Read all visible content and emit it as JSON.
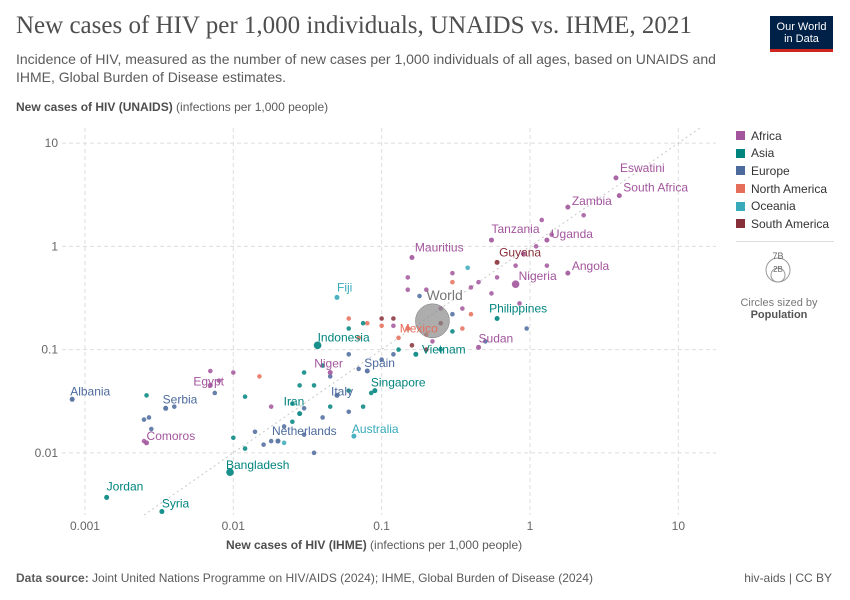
{
  "header": {
    "title": "New cases of HIV per 1,000 individuals, UNAIDS vs. IHME, 2021",
    "subtitle": "Incidence of HIV, measured as the number of new cases per 1,000 individuals of all ages, based on UNAIDS and IHME, Global Burden of Disease estimates.",
    "logo_line1": "Our World",
    "logo_line2": "in Data"
  },
  "axes": {
    "y_label_bold": "New cases of HIV (UNAIDS)",
    "y_label_unit": "(infections per 1,000 people)",
    "x_label_bold": "New cases of HIV (IHME)",
    "x_label_unit": "(infections per 1,000 people)"
  },
  "legend": {
    "items": [
      {
        "label": "Africa",
        "color": "#a2559c"
      },
      {
        "label": "Asia",
        "color": "#00847e"
      },
      {
        "label": "Europe",
        "color": "#4c6a9c"
      },
      {
        "label": "North America",
        "color": "#e56e5a"
      },
      {
        "label": "Oceania",
        "color": "#38aaba"
      },
      {
        "label": "South America",
        "color": "#883039"
      }
    ],
    "size_note": "Circles sized by",
    "size_variable": "Population",
    "size_big": "7B",
    "size_small": "2B"
  },
  "footer": {
    "source_label": "Data source:",
    "source_text": "Joint United Nations Programme on HIV/AIDS (2024); IHME, Global Burden of Disease (2024)",
    "license": "hiv-aids | CC BY"
  },
  "chart_data": {
    "type": "scatter",
    "x_scale": "log",
    "y_scale": "log",
    "xlim": [
      0.0007,
      14
    ],
    "ylim": [
      0.0025,
      14
    ],
    "x_ticks": [
      "0.001",
      "0.01",
      "0.1",
      "1",
      "10"
    ],
    "y_ticks": [
      "10",
      "1",
      "0.1",
      "0.01"
    ],
    "grid": true,
    "legend_position": "right",
    "reference_line": "y = x",
    "labeled_points": [
      {
        "name": "Eswatini",
        "x": 3.8,
        "y": 4.6,
        "region": "Africa",
        "size": "small"
      },
      {
        "name": "South Africa",
        "x": 4.0,
        "y": 3.1,
        "region": "Africa",
        "size": "small"
      },
      {
        "name": "Zambia",
        "x": 1.8,
        "y": 2.4,
        "region": "Africa",
        "size": "small"
      },
      {
        "name": "Tanzania",
        "x": 0.55,
        "y": 1.15,
        "region": "Africa",
        "size": "small"
      },
      {
        "name": "Uganda",
        "x": 1.3,
        "y": 1.15,
        "region": "Africa",
        "size": "small"
      },
      {
        "name": "Mauritius",
        "x": 0.16,
        "y": 0.78,
        "region": "Africa",
        "size": "small"
      },
      {
        "name": "Guyana",
        "x": 0.6,
        "y": 0.7,
        "region": "South America",
        "size": "small"
      },
      {
        "name": "Nigeria",
        "x": 0.8,
        "y": 0.43,
        "region": "Africa",
        "size": "medium"
      },
      {
        "name": "Angola",
        "x": 1.8,
        "y": 0.55,
        "region": "Africa",
        "size": "small"
      },
      {
        "name": "Fiji",
        "x": 0.05,
        "y": 0.32,
        "region": "Oceania",
        "size": "small"
      },
      {
        "name": "World",
        "x": 0.22,
        "y": 0.19,
        "region": "World",
        "size": "large"
      },
      {
        "name": "Philippines",
        "x": 0.6,
        "y": 0.2,
        "region": "Asia",
        "size": "small"
      },
      {
        "name": "Mexico",
        "x": 0.15,
        "y": 0.16,
        "region": "North America",
        "size": "small"
      },
      {
        "name": "Indonesia",
        "x": 0.037,
        "y": 0.11,
        "region": "Asia",
        "size": "medium"
      },
      {
        "name": "Sudan",
        "x": 0.45,
        "y": 0.105,
        "region": "Africa",
        "size": "small"
      },
      {
        "name": "Vietnam",
        "x": 0.17,
        "y": 0.09,
        "region": "Asia",
        "size": "small"
      },
      {
        "name": "Spain",
        "x": 0.08,
        "y": 0.062,
        "region": "Europe",
        "size": "small"
      },
      {
        "name": "Niger",
        "x": 0.045,
        "y": 0.06,
        "region": "Africa",
        "size": "small"
      },
      {
        "name": "Egypt",
        "x": 0.007,
        "y": 0.045,
        "region": "Africa",
        "size": "small"
      },
      {
        "name": "Singapore",
        "x": 0.09,
        "y": 0.04,
        "region": "Asia",
        "size": "small"
      },
      {
        "name": "Italy",
        "x": 0.05,
        "y": 0.036,
        "region": "Europe",
        "size": "small"
      },
      {
        "name": "Albania",
        "x": 0.00082,
        "y": 0.033,
        "region": "Europe",
        "size": "small"
      },
      {
        "name": "Serbia",
        "x": 0.0035,
        "y": 0.027,
        "region": "Europe",
        "size": "small"
      },
      {
        "name": "Iran",
        "x": 0.028,
        "y": 0.024,
        "region": "Asia",
        "size": "small"
      },
      {
        "name": "Comoros",
        "x": 0.0026,
        "y": 0.0125,
        "region": "Africa",
        "size": "small"
      },
      {
        "name": "Netherlands",
        "x": 0.02,
        "y": 0.013,
        "region": "Europe",
        "size": "small"
      },
      {
        "name": "Australia",
        "x": 0.065,
        "y": 0.0145,
        "region": "Oceania",
        "size": "small"
      },
      {
        "name": "Bangladesh",
        "x": 0.0095,
        "y": 0.0065,
        "region": "Asia",
        "size": "medium"
      },
      {
        "name": "Jordan",
        "x": 0.0014,
        "y": 0.0037,
        "region": "Asia",
        "size": "small"
      },
      {
        "name": "Syria",
        "x": 0.0033,
        "y": 0.0027,
        "region": "Asia",
        "size": "small"
      }
    ],
    "unlabeled_points": [
      [
        2.3,
        2.0,
        "Africa"
      ],
      [
        1.2,
        1.8,
        "Africa"
      ],
      [
        1.4,
        1.3,
        "Africa"
      ],
      [
        1.1,
        1.0,
        "Africa"
      ],
      [
        0.9,
        0.85,
        "Africa"
      ],
      [
        1.3,
        0.65,
        "Africa"
      ],
      [
        0.8,
        0.65,
        "Africa"
      ],
      [
        0.6,
        0.5,
        "Africa"
      ],
      [
        0.45,
        0.45,
        "Africa"
      ],
      [
        0.3,
        0.55,
        "Africa"
      ],
      [
        0.15,
        0.5,
        "Africa"
      ],
      [
        0.15,
        0.38,
        "Africa"
      ],
      [
        0.25,
        0.25,
        "Africa"
      ],
      [
        0.35,
        0.25,
        "Africa"
      ],
      [
        0.55,
        0.35,
        "Africa"
      ],
      [
        0.85,
        0.28,
        "Africa"
      ],
      [
        0.2,
        0.38,
        "Africa"
      ],
      [
        0.4,
        0.4,
        "Africa"
      ],
      [
        0.12,
        0.17,
        "Africa"
      ],
      [
        0.22,
        0.12,
        "Africa"
      ],
      [
        0.38,
        0.62,
        "Oceania"
      ],
      [
        0.18,
        0.33,
        "Europe"
      ],
      [
        0.95,
        0.16,
        "Europe"
      ],
      [
        0.5,
        0.12,
        "Europe"
      ],
      [
        0.3,
        0.22,
        "Europe"
      ],
      [
        0.06,
        0.2,
        "North America"
      ],
      [
        0.08,
        0.18,
        "North America"
      ],
      [
        0.1,
        0.17,
        "North America"
      ],
      [
        0.13,
        0.13,
        "North America"
      ],
      [
        0.2,
        0.14,
        "North America"
      ],
      [
        0.35,
        0.16,
        "North America"
      ],
      [
        0.4,
        0.22,
        "North America"
      ],
      [
        0.07,
        0.13,
        "North America"
      ],
      [
        0.3,
        0.45,
        "North America"
      ],
      [
        0.1,
        0.2,
        "South America"
      ],
      [
        0.12,
        0.2,
        "South America"
      ],
      [
        0.2,
        0.1,
        "South America"
      ],
      [
        0.25,
        0.18,
        "South America"
      ],
      [
        0.16,
        0.11,
        "South America"
      ],
      [
        0.075,
        0.18,
        "Asia"
      ],
      [
        0.06,
        0.16,
        "Asia"
      ],
      [
        0.3,
        0.15,
        "Asia"
      ],
      [
        0.13,
        0.1,
        "Asia"
      ],
      [
        0.25,
        0.1,
        "Asia"
      ],
      [
        0.06,
        0.09,
        "Europe"
      ],
      [
        0.07,
        0.065,
        "Europe"
      ],
      [
        0.1,
        0.08,
        "Europe"
      ],
      [
        0.12,
        0.09,
        "Europe"
      ],
      [
        0.045,
        0.055,
        "Europe"
      ],
      [
        0.04,
        0.07,
        "Asia"
      ],
      [
        0.03,
        0.06,
        "Asia"
      ],
      [
        0.028,
        0.045,
        "Asia"
      ],
      [
        0.035,
        0.045,
        "Asia"
      ],
      [
        0.06,
        0.04,
        "Asia"
      ],
      [
        0.085,
        0.038,
        "Asia"
      ],
      [
        0.045,
        0.028,
        "Asia"
      ],
      [
        0.025,
        0.03,
        "Asia"
      ],
      [
        0.012,
        0.035,
        "Asia"
      ],
      [
        0.025,
        0.02,
        "Asia"
      ],
      [
        0.06,
        0.025,
        "Europe"
      ],
      [
        0.04,
        0.022,
        "Europe"
      ],
      [
        0.03,
        0.027,
        "Europe"
      ],
      [
        0.022,
        0.018,
        "Europe"
      ],
      [
        0.014,
        0.016,
        "Europe"
      ],
      [
        0.03,
        0.015,
        "Europe"
      ],
      [
        0.035,
        0.01,
        "Europe"
      ],
      [
        0.018,
        0.013,
        "Europe"
      ],
      [
        0.016,
        0.012,
        "Europe"
      ],
      [
        0.0025,
        0.021,
        "Europe"
      ],
      [
        0.0027,
        0.022,
        "Europe"
      ],
      [
        0.0028,
        0.017,
        "Europe"
      ],
      [
        0.004,
        0.028,
        "Europe"
      ],
      [
        0.0075,
        0.038,
        "Europe"
      ],
      [
        0.01,
        0.06,
        "Africa"
      ],
      [
        0.007,
        0.062,
        "Africa"
      ],
      [
        0.008,
        0.05,
        "Africa"
      ],
      [
        0.015,
        0.055,
        "North America"
      ],
      [
        0.018,
        0.028,
        "Africa"
      ],
      [
        0.0026,
        0.036,
        "Asia"
      ],
      [
        0.01,
        0.014,
        "Asia"
      ],
      [
        0.012,
        0.011,
        "Asia"
      ],
      [
        0.022,
        0.0125,
        "Oceania"
      ],
      [
        0.075,
        0.028,
        "Asia"
      ],
      [
        0.0025,
        0.013,
        "Africa"
      ]
    ]
  }
}
